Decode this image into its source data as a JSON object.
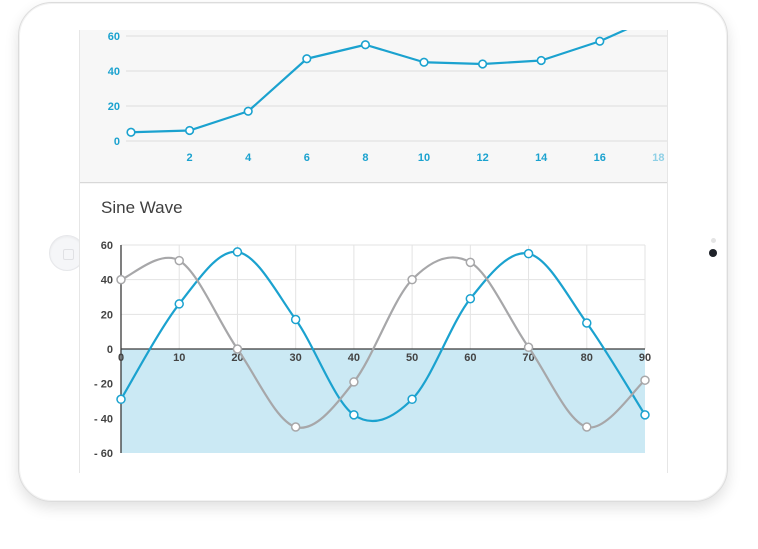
{
  "sine_section": {
    "title": "Sine Wave"
  },
  "chart_data": [
    {
      "type": "line",
      "title": "",
      "xlabel": "",
      "ylabel": "",
      "x_ticks": [
        "2",
        "4",
        "6",
        "8",
        "10",
        "12",
        "14",
        "16",
        "18"
      ],
      "y_ticks": [
        "0",
        "20",
        "40",
        "60"
      ],
      "xlim": [
        0,
        18
      ],
      "ylim": [
        0,
        60
      ],
      "grid": "horizontal",
      "colors": {
        "line": "#1ba2cf",
        "axis_text": "#1ba2cf",
        "axis_text_faded": "#8fd0e6",
        "grid": "#dcdcdc"
      },
      "series": [
        {
          "x": [
            0,
            2,
            4,
            6,
            8,
            10,
            12,
            14,
            16,
            18
          ],
          "values": [
            5,
            6,
            17,
            47,
            55,
            45,
            44,
            46,
            57,
            72
          ]
        }
      ]
    },
    {
      "type": "line",
      "title": "Sine Wave",
      "xlabel": "",
      "ylabel": "",
      "x_ticks": [
        "0",
        "10",
        "20",
        "30",
        "40",
        "50",
        "60",
        "70",
        "80",
        "90"
      ],
      "y_ticks": [
        "60",
        "40",
        "20",
        "0",
        "- 20",
        "- 40",
        "- 60"
      ],
      "xlim": [
        0,
        90
      ],
      "ylim": [
        -60,
        60
      ],
      "grid": "both",
      "negative_region_fill": "#cbe9f4",
      "colors": {
        "blue": "#1ba2cf",
        "gray": "#a7a7a9",
        "grid": "#e3e3e3",
        "axis": "#444444"
      },
      "series": [
        {
          "color": "#1ba2cf",
          "x": [
            0,
            10,
            20,
            30,
            40,
            50,
            60,
            70,
            80,
            90
          ],
          "values": [
            -29,
            26,
            56,
            17,
            -38,
            -29,
            29,
            55,
            15,
            -38
          ]
        },
        {
          "color": "#a7a7a9",
          "x": [
            0,
            10,
            20,
            30,
            40,
            50,
            60,
            70,
            80,
            90
          ],
          "values": [
            40,
            51,
            0,
            -45,
            -19,
            40,
            50,
            1,
            -45,
            -18
          ]
        }
      ]
    }
  ]
}
